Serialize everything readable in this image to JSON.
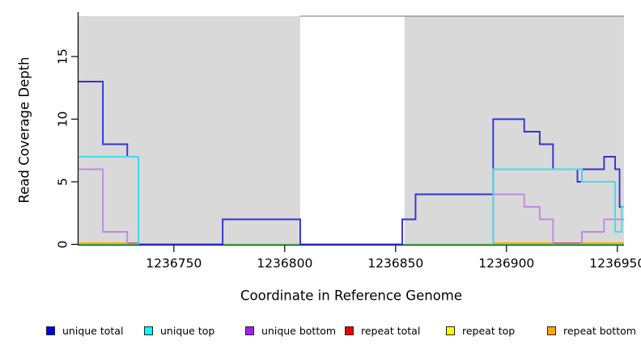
{
  "chart_data": {
    "type": "line",
    "subtype": "step-coverage-plot",
    "title": "",
    "xlabel": "Coordinate in Reference Genome",
    "ylabel": "Read Coverage Depth",
    "xlim": [
      1236707,
      1236953
    ],
    "ylim": [
      0,
      18.2
    ],
    "x_ticks": [
      1236750,
      1236800,
      1236850,
      1236900,
      1236950
    ],
    "y_ticks": [
      0,
      5,
      10,
      15
    ],
    "grid": false,
    "panel_color": "#d9d9d9",
    "gap_band": {
      "x0": 1236807,
      "x1": 1236854,
      "color": "#ffffff",
      "note": "white band with no panel shading"
    },
    "baseline": {
      "value": 0,
      "color": "#57c35e"
    },
    "series": [
      {
        "name": "unique total",
        "color": "#3430dc",
        "segments": [
          {
            "start_at_zero": false,
            "end": 1236953,
            "steps": [
              [
                1236707,
                13
              ],
              [
                1236718,
                8
              ],
              [
                1236729,
                7
              ],
              [
                1236734,
                0
              ],
              [
                1236772,
                2
              ],
              [
                1236807,
                0
              ],
              [
                1236853,
                2
              ],
              [
                1236859,
                4
              ],
              [
                1236894,
                10
              ],
              [
                1236908,
                9
              ],
              [
                1236915,
                8
              ],
              [
                1236921,
                6
              ],
              [
                1236932,
                5
              ],
              [
                1236934,
                6
              ],
              [
                1236944,
                7
              ],
              [
                1236949,
                6
              ],
              [
                1236951,
                3
              ]
            ]
          }
        ]
      },
      {
        "name": "unique top",
        "color": "#45dcea",
        "segments": [
          {
            "start_at_zero": false,
            "end": 1236734,
            "steps": [
              [
                1236707,
                7
              ],
              [
                1236734,
                0
              ]
            ]
          },
          {
            "start_at_zero": true,
            "end": 1236953,
            "steps": [
              [
                1236894,
                6
              ],
              [
                1236934,
                5
              ],
              [
                1236949,
                1
              ],
              [
                1236952,
                3
              ]
            ]
          }
        ]
      },
      {
        "name": "unique bottom",
        "color": "#bd8ae4",
        "segments": [
          {
            "start_at_zero": false,
            "end": 1236729,
            "steps": [
              [
                1236707,
                6
              ],
              [
                1236718,
                1
              ],
              [
                1236729,
                0
              ]
            ]
          },
          {
            "start_at_zero": true,
            "end": 1236921,
            "steps": [
              [
                1236894,
                4
              ],
              [
                1236908,
                3
              ],
              [
                1236915,
                2
              ],
              [
                1236921,
                0
              ]
            ]
          },
          {
            "start_at_zero": true,
            "end": 1236953,
            "steps": [
              [
                1236934,
                1
              ],
              [
                1236944,
                2
              ]
            ]
          }
        ]
      },
      {
        "name": "repeat total",
        "color": "#dd5577",
        "zero_segments": [
          [
            1236729,
            1236734
          ],
          [
            1236921,
            1236934
          ]
        ]
      },
      {
        "name": "repeat top",
        "color": "#ffff00",
        "zero_segments": []
      },
      {
        "name": "repeat bottom",
        "color": "#ffa500",
        "zero_segments": [
          [
            1236707,
            1236729
          ],
          [
            1236894,
            1236921
          ],
          [
            1236934,
            1236953
          ]
        ]
      }
    ]
  },
  "legend": {
    "items": [
      {
        "label": "unique total",
        "swatch_color": "#0000ee"
      },
      {
        "label": "unique top",
        "swatch_color": "#00ffff"
      },
      {
        "label": "unique bottom",
        "swatch_color": "#a020f0"
      },
      {
        "label": "repeat total",
        "swatch_color": "#ee0000"
      },
      {
        "label": "repeat top",
        "swatch_color": "#ffff00"
      },
      {
        "label": "repeat bottom",
        "swatch_color": "#ffa500"
      }
    ]
  }
}
